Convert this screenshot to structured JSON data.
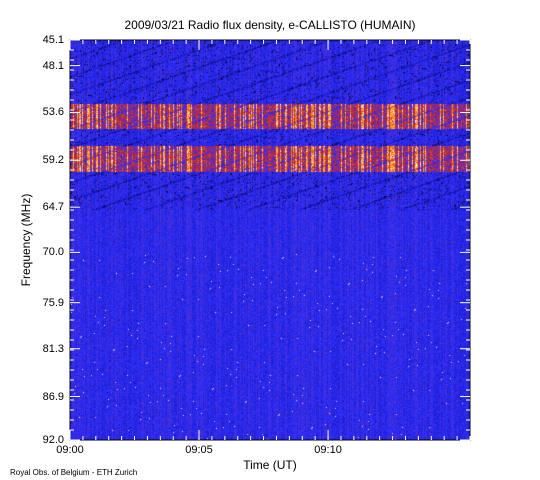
{
  "chart_data": {
    "type": "heatmap",
    "title": "2009/03/21  Radio flux density, e-CALLISTO (HUMAIN)",
    "xlabel": "Time (UT)",
    "ylabel": "Frequency (MHz)",
    "x_ticks": [
      "09:00",
      "09:05",
      "09:10"
    ],
    "x_range_minutes": [
      0,
      15.5
    ],
    "y_ticks": [
      "45.1",
      "48.1",
      "53.6",
      "59.2",
      "64.7",
      "70.0",
      "75.9",
      "81.3",
      "86.9",
      "92.0"
    ],
    "y_range": [
      45.1,
      92.0
    ],
    "y_reversed": true,
    "colormap": [
      "#000000",
      "#1a1acc",
      "#3333ff",
      "#cc2222",
      "#ff8800",
      "#ffffff"
    ],
    "bright_bands_mhz": [
      [
        52.5,
        55.5
      ],
      [
        57.5,
        60.5
      ]
    ],
    "credit": "Royal Obs. of Belgium - ETH Zurich"
  }
}
